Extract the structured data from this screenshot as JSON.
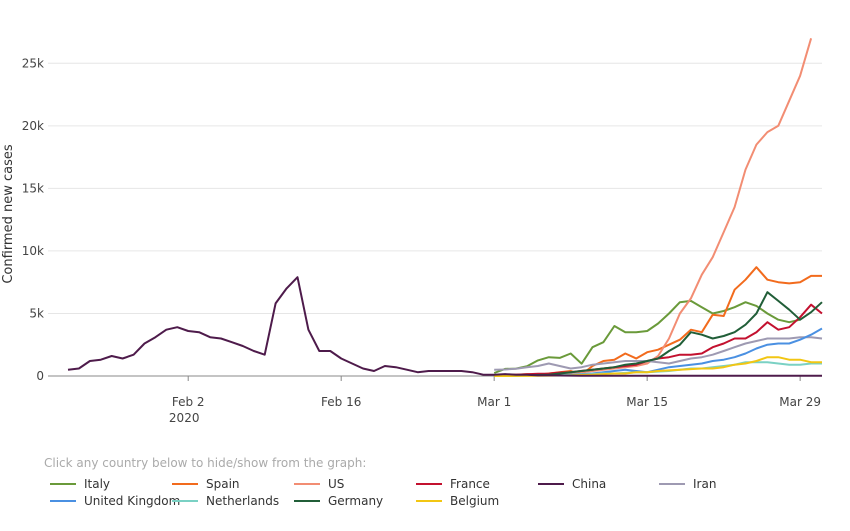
{
  "legend_hint": "Click any country below to hide/show from the graph:",
  "chart_data": {
    "type": "line",
    "ylabel": "Confirmed new cases",
    "ylim": [
      0,
      27500
    ],
    "y_ticks": [
      0,
      5000,
      10000,
      15000,
      20000,
      25000
    ],
    "y_tick_labels": [
      "0",
      "5k",
      "10k",
      "15k",
      "20k",
      "25k"
    ],
    "x_range": [
      "2020-01-22",
      "2020-03-31"
    ],
    "x_ticks": [
      {
        "date": "2020-02-02",
        "label": "Feb 2",
        "sublabel": "2020"
      },
      {
        "date": "2020-02-16",
        "label": "Feb 16",
        "sublabel": ""
      },
      {
        "date": "2020-03-01",
        "label": "Mar 1",
        "sublabel": ""
      },
      {
        "date": "2020-03-15",
        "label": "Mar 15",
        "sublabel": ""
      },
      {
        "date": "2020-03-29",
        "label": "Mar 29",
        "sublabel": ""
      }
    ],
    "grid": true,
    "legend_position": "bottom",
    "series": [
      {
        "name": "Italy",
        "color": "#6a9a3a",
        "start": "2020-03-01",
        "values": [
          240,
          570,
          590,
          780,
          1250,
          1500,
          1450,
          1800,
          980,
          2300,
          2700,
          4000,
          3500,
          3500,
          3600,
          4200,
          5000,
          5900,
          6000,
          5500,
          5000,
          5200,
          5500,
          5900,
          5600,
          5000,
          4500,
          4300,
          4500
        ]
      },
      {
        "name": "Spain",
        "color": "#f26b1d",
        "start": "2020-03-01",
        "values": [
          0,
          100,
          100,
          150,
          100,
          200,
          300,
          400,
          100,
          800,
          1200,
          1300,
          1800,
          1400,
          1900,
          2100,
          2500,
          2900,
          3700,
          3500,
          4900,
          4800,
          6900,
          7700,
          8700,
          7700,
          7500,
          7400,
          7500,
          8000,
          8000
        ]
      },
      {
        "name": "US",
        "color": "#f28d73",
        "start": "2020-03-01",
        "values": [
          0,
          10,
          30,
          40,
          70,
          100,
          120,
          200,
          300,
          400,
          500,
          600,
          700,
          800,
          1000,
          1600,
          3000,
          5000,
          6200,
          8100,
          9500,
          11500,
          13500,
          16500,
          18500,
          19500,
          20000,
          22000,
          24000,
          27000
        ]
      },
      {
        "name": "France",
        "color": "#c3112f",
        "start": "2020-03-01",
        "values": [
          40,
          80,
          100,
          140,
          180,
          190,
          280,
          300,
          410,
          500,
          600,
          700,
          800,
          900,
          1200,
          1400,
          1500,
          1700,
          1700,
          1800,
          2300,
          2600,
          3000,
          3000,
          3500,
          4300,
          3700,
          3900,
          4700,
          5700,
          5000
        ]
      },
      {
        "name": "China",
        "color": "#4e1b4b",
        "start": "2020-01-22",
        "values": [
          500,
          600,
          1200,
          1300,
          1600,
          1400,
          1700,
          2600,
          3100,
          3700,
          3900,
          3600,
          3500,
          3100,
          3000,
          2700,
          2400,
          2000,
          1700,
          5800,
          7000,
          7900,
          3700,
          2000,
          2000,
          1400,
          1000,
          600,
          400,
          800,
          700,
          500,
          300,
          400,
          400,
          400,
          400,
          300,
          100,
          100,
          150,
          100,
          100,
          50,
          50,
          40,
          30,
          20,
          20,
          20,
          20,
          20,
          20,
          20,
          20,
          20,
          20,
          20,
          20,
          20,
          20,
          20,
          20,
          20,
          20,
          20,
          20,
          20,
          20,
          20
        ]
      },
      {
        "name": "Iran",
        "color": "#9e9ab2",
        "start": "2020-03-01",
        "values": [
          500,
          520,
          580,
          700,
          800,
          1000,
          800,
          600,
          700,
          900,
          1000,
          1100,
          1200,
          1200,
          1200,
          1100,
          1000,
          1200,
          1400,
          1500,
          1700,
          2000,
          2300,
          2600,
          2800,
          3000,
          3000,
          3000,
          3100,
          3100,
          3000
        ]
      },
      {
        "name": "United Kingdom",
        "color": "#4a90e2",
        "start": "2020-03-01",
        "values": [
          10,
          20,
          30,
          40,
          60,
          80,
          90,
          100,
          150,
          200,
          300,
          400,
          500,
          400,
          300,
          500,
          700,
          800,
          900,
          1000,
          1200,
          1300,
          1500,
          1800,
          2200,
          2500,
          2600,
          2600,
          2900,
          3300,
          3800
        ]
      },
      {
        "name": "Netherlands",
        "color": "#7ad1c4",
        "start": "2020-03-01",
        "values": [
          10,
          10,
          20,
          30,
          40,
          50,
          80,
          100,
          120,
          150,
          200,
          200,
          250,
          300,
          300,
          350,
          400,
          500,
          600,
          600,
          700,
          800,
          900,
          1100,
          1100,
          1100,
          1000,
          900,
          900,
          1000,
          1000
        ]
      },
      {
        "name": "Germany",
        "color": "#215e38",
        "start": "2020-03-01",
        "values": [
          0,
          20,
          30,
          50,
          80,
          100,
          200,
          300,
          400,
          500,
          600,
          700,
          900,
          1000,
          1200,
          1400,
          2000,
          2500,
          3500,
          3300,
          3000,
          3200,
          3500,
          4100,
          5000,
          6700,
          6000,
          5300,
          4500,
          5100,
          5900
        ]
      },
      {
        "name": "Belgium",
        "color": "#f2c613",
        "start": "2020-03-01",
        "values": [
          0,
          0,
          10,
          10,
          20,
          30,
          40,
          50,
          80,
          100,
          150,
          200,
          200,
          300,
          300,
          400,
          450,
          500,
          550,
          600,
          600,
          700,
          900,
          1000,
          1200,
          1500,
          1500,
          1300,
          1300,
          1100,
          1100
        ]
      }
    ]
  }
}
